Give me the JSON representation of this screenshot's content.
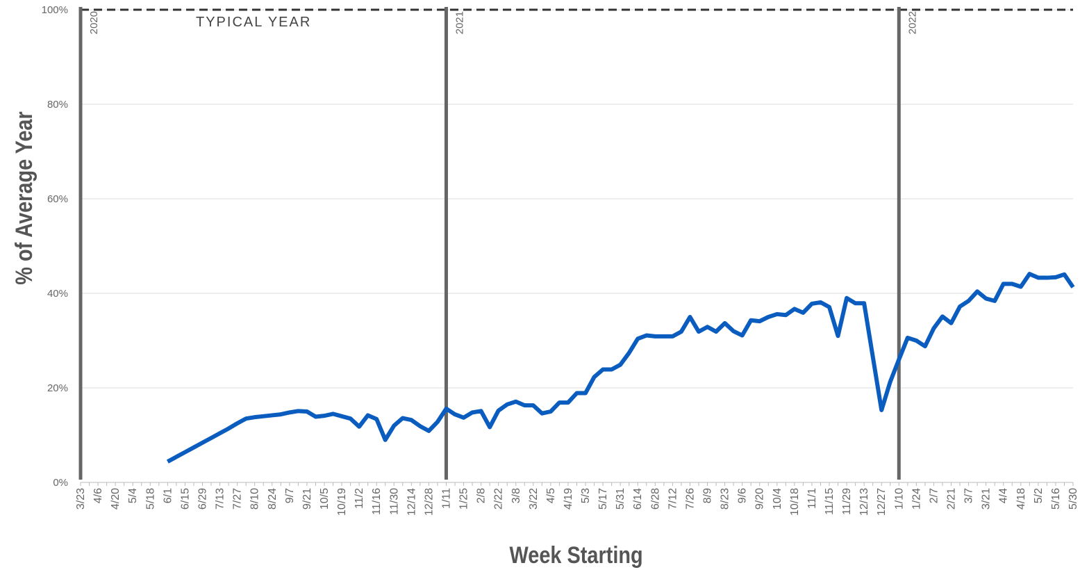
{
  "chart_data": {
    "type": "line",
    "y_label": "% of Average Year",
    "x_label": "Week Starting",
    "categories": [
      "3/23",
      null,
      "4/6",
      null,
      "4/20",
      null,
      "5/4",
      null,
      "5/18",
      null,
      "6/1",
      null,
      "6/15",
      null,
      "6/29",
      null,
      "7/13",
      null,
      "7/27",
      null,
      "8/10",
      null,
      "8/24",
      null,
      "9/7",
      null,
      "9/21",
      null,
      "10/5",
      null,
      "10/19",
      null,
      "11/2",
      null,
      "11/16",
      null,
      "11/30",
      null,
      "12/14",
      null,
      "12/28",
      null,
      "1/11",
      null,
      "1/25",
      null,
      "2/8",
      null,
      "2/22",
      null,
      "3/8",
      null,
      "3/22",
      null,
      "4/5",
      null,
      "4/19",
      null,
      "5/3",
      null,
      "5/17",
      null,
      "5/31",
      null,
      "6/14",
      null,
      "6/28",
      null,
      "7/12",
      null,
      "7/26",
      null,
      "8/9",
      null,
      "8/23",
      null,
      "9/6",
      null,
      "9/20",
      null,
      "10/4",
      null,
      "10/18",
      null,
      "11/1",
      null,
      "11/15",
      null,
      "11/29",
      null,
      "12/13",
      null,
      "12/27",
      null,
      "1/10",
      null,
      "1/24",
      null,
      "2/7",
      null,
      "2/21",
      null,
      "3/7",
      null,
      "3/21",
      null,
      "4/4",
      null,
      "4/18",
      null,
      "5/2",
      null,
      "5/16",
      null,
      "5/30"
    ],
    "series": [
      {
        "color": "#0a5cbe",
        "values": [
          null,
          null,
          null,
          null,
          null,
          null,
          null,
          null,
          null,
          null,
          4.4,
          5.4,
          6.4,
          7.4,
          8.4,
          9.4,
          10.4,
          11.4,
          12.5,
          13.5,
          13.8,
          14.0,
          14.2,
          14.4,
          14.8,
          15.1,
          15.0,
          13.9,
          14.1,
          14.5,
          14.0,
          13.5,
          11.8,
          14.2,
          13.4,
          9.0,
          12.0,
          13.6,
          13.2,
          11.9,
          10.9,
          12.8,
          15.6,
          14.4,
          13.7,
          14.8,
          15.1,
          11.7,
          15.2,
          16.5,
          17.1,
          16.3,
          16.3,
          14.6,
          15.0,
          16.9,
          16.9,
          18.9,
          18.9,
          22.3,
          23.9,
          23.9,
          24.9,
          27.4,
          30.4,
          31.1,
          30.9,
          30.9,
          30.9,
          31.9,
          35.0,
          31.9,
          32.9,
          31.9,
          33.7,
          32.0,
          31.1,
          34.3,
          34.1,
          35.0,
          35.6,
          35.4,
          36.7,
          35.9,
          37.8,
          38.1,
          37.1,
          31.0,
          39.0,
          37.9,
          37.9,
          26.6,
          15.3,
          21.3,
          26.0,
          30.6,
          30.0,
          28.8,
          32.6,
          35.1,
          33.7,
          37.2,
          38.4,
          40.4,
          38.9,
          38.4,
          42.0,
          42.0,
          41.4,
          44.1,
          43.3,
          43.3,
          43.4,
          44.0,
          41.3
        ]
      }
    ],
    "ylim": [
      0,
      100
    ],
    "yticks": [
      {
        "value": 0,
        "label": "0%"
      },
      {
        "value": 20,
        "label": "20%"
      },
      {
        "value": 40,
        "label": "40%"
      },
      {
        "value": 60,
        "label": "60%"
      },
      {
        "value": 80,
        "label": "80%"
      },
      {
        "value": 100,
        "label": "100%"
      }
    ],
    "grid": true,
    "reference_line": {
      "value": 100,
      "label": "TYPICAL YEAR",
      "style": "dashed"
    },
    "year_markers": [
      {
        "label": "2020",
        "category": "3/23"
      },
      {
        "label": "2021",
        "category": "1/11"
      },
      {
        "label": "2022",
        "category": "1/10"
      }
    ]
  }
}
